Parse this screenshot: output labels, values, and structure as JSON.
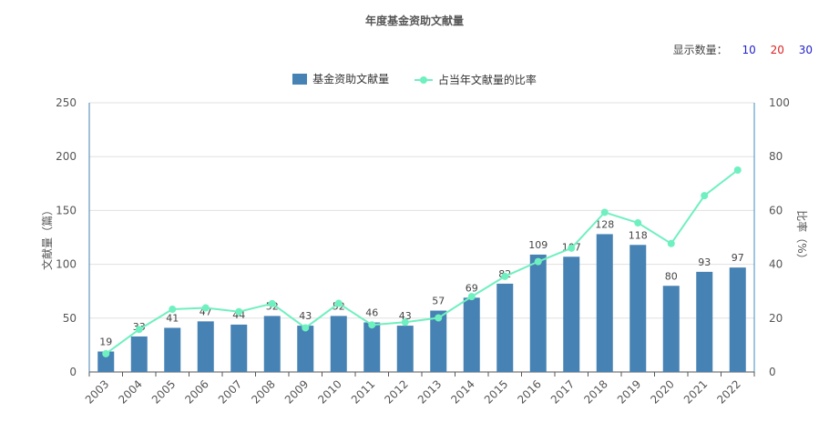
{
  "page": {
    "title": "年度基金资助文献量",
    "count_label": "显示数量：",
    "count_options": [
      {
        "label": "10",
        "color": "#2222cc"
      },
      {
        "label": "20",
        "color": "#dd2222"
      },
      {
        "label": "30",
        "color": "#2222cc"
      }
    ]
  },
  "colors": {
    "bar": "#4682b4",
    "line": "#6ff0c0",
    "axis_left": "#4682b4",
    "axis_right": "#3c8fbf"
  },
  "chart_data": {
    "type": "bar",
    "title": "年度基金资助文献量",
    "categories": [
      "2003",
      "2004",
      "2005",
      "2006",
      "2007",
      "2008",
      "2009",
      "2010",
      "2011",
      "2012",
      "2013",
      "2014",
      "2015",
      "2016",
      "2017",
      "2018",
      "2019",
      "2020",
      "2021",
      "2022"
    ],
    "series": [
      {
        "name": "基金资助文献量",
        "type": "bar",
        "axis": "left",
        "values": [
          19,
          33,
          41,
          47,
          44,
          52,
          43,
          52,
          46,
          43,
          57,
          69,
          82,
          109,
          107,
          128,
          118,
          80,
          93,
          97
        ]
      },
      {
        "name": "占当年文献量的比率",
        "type": "line",
        "axis": "right",
        "values": [
          6.8,
          15.8,
          23.3,
          23.8,
          22.4,
          25.4,
          16.4,
          25.5,
          17.5,
          18.5,
          20.1,
          28.0,
          35.5,
          41.0,
          46.0,
          59.3,
          55.4,
          47.7,
          65.5,
          75.0
        ]
      }
    ],
    "ylabel": "文献量（篇）",
    "ylabel_right": "比率（%）",
    "ylim": [
      0,
      250
    ],
    "yticks": [
      "0",
      "50",
      "100",
      "150",
      "200",
      "250"
    ],
    "ylim_right": [
      0,
      100
    ],
    "yticks_right": [
      "0",
      "20",
      "40",
      "60",
      "80",
      "100"
    ],
    "grid": true,
    "legend_position": "top-center",
    "data_labels": true
  }
}
